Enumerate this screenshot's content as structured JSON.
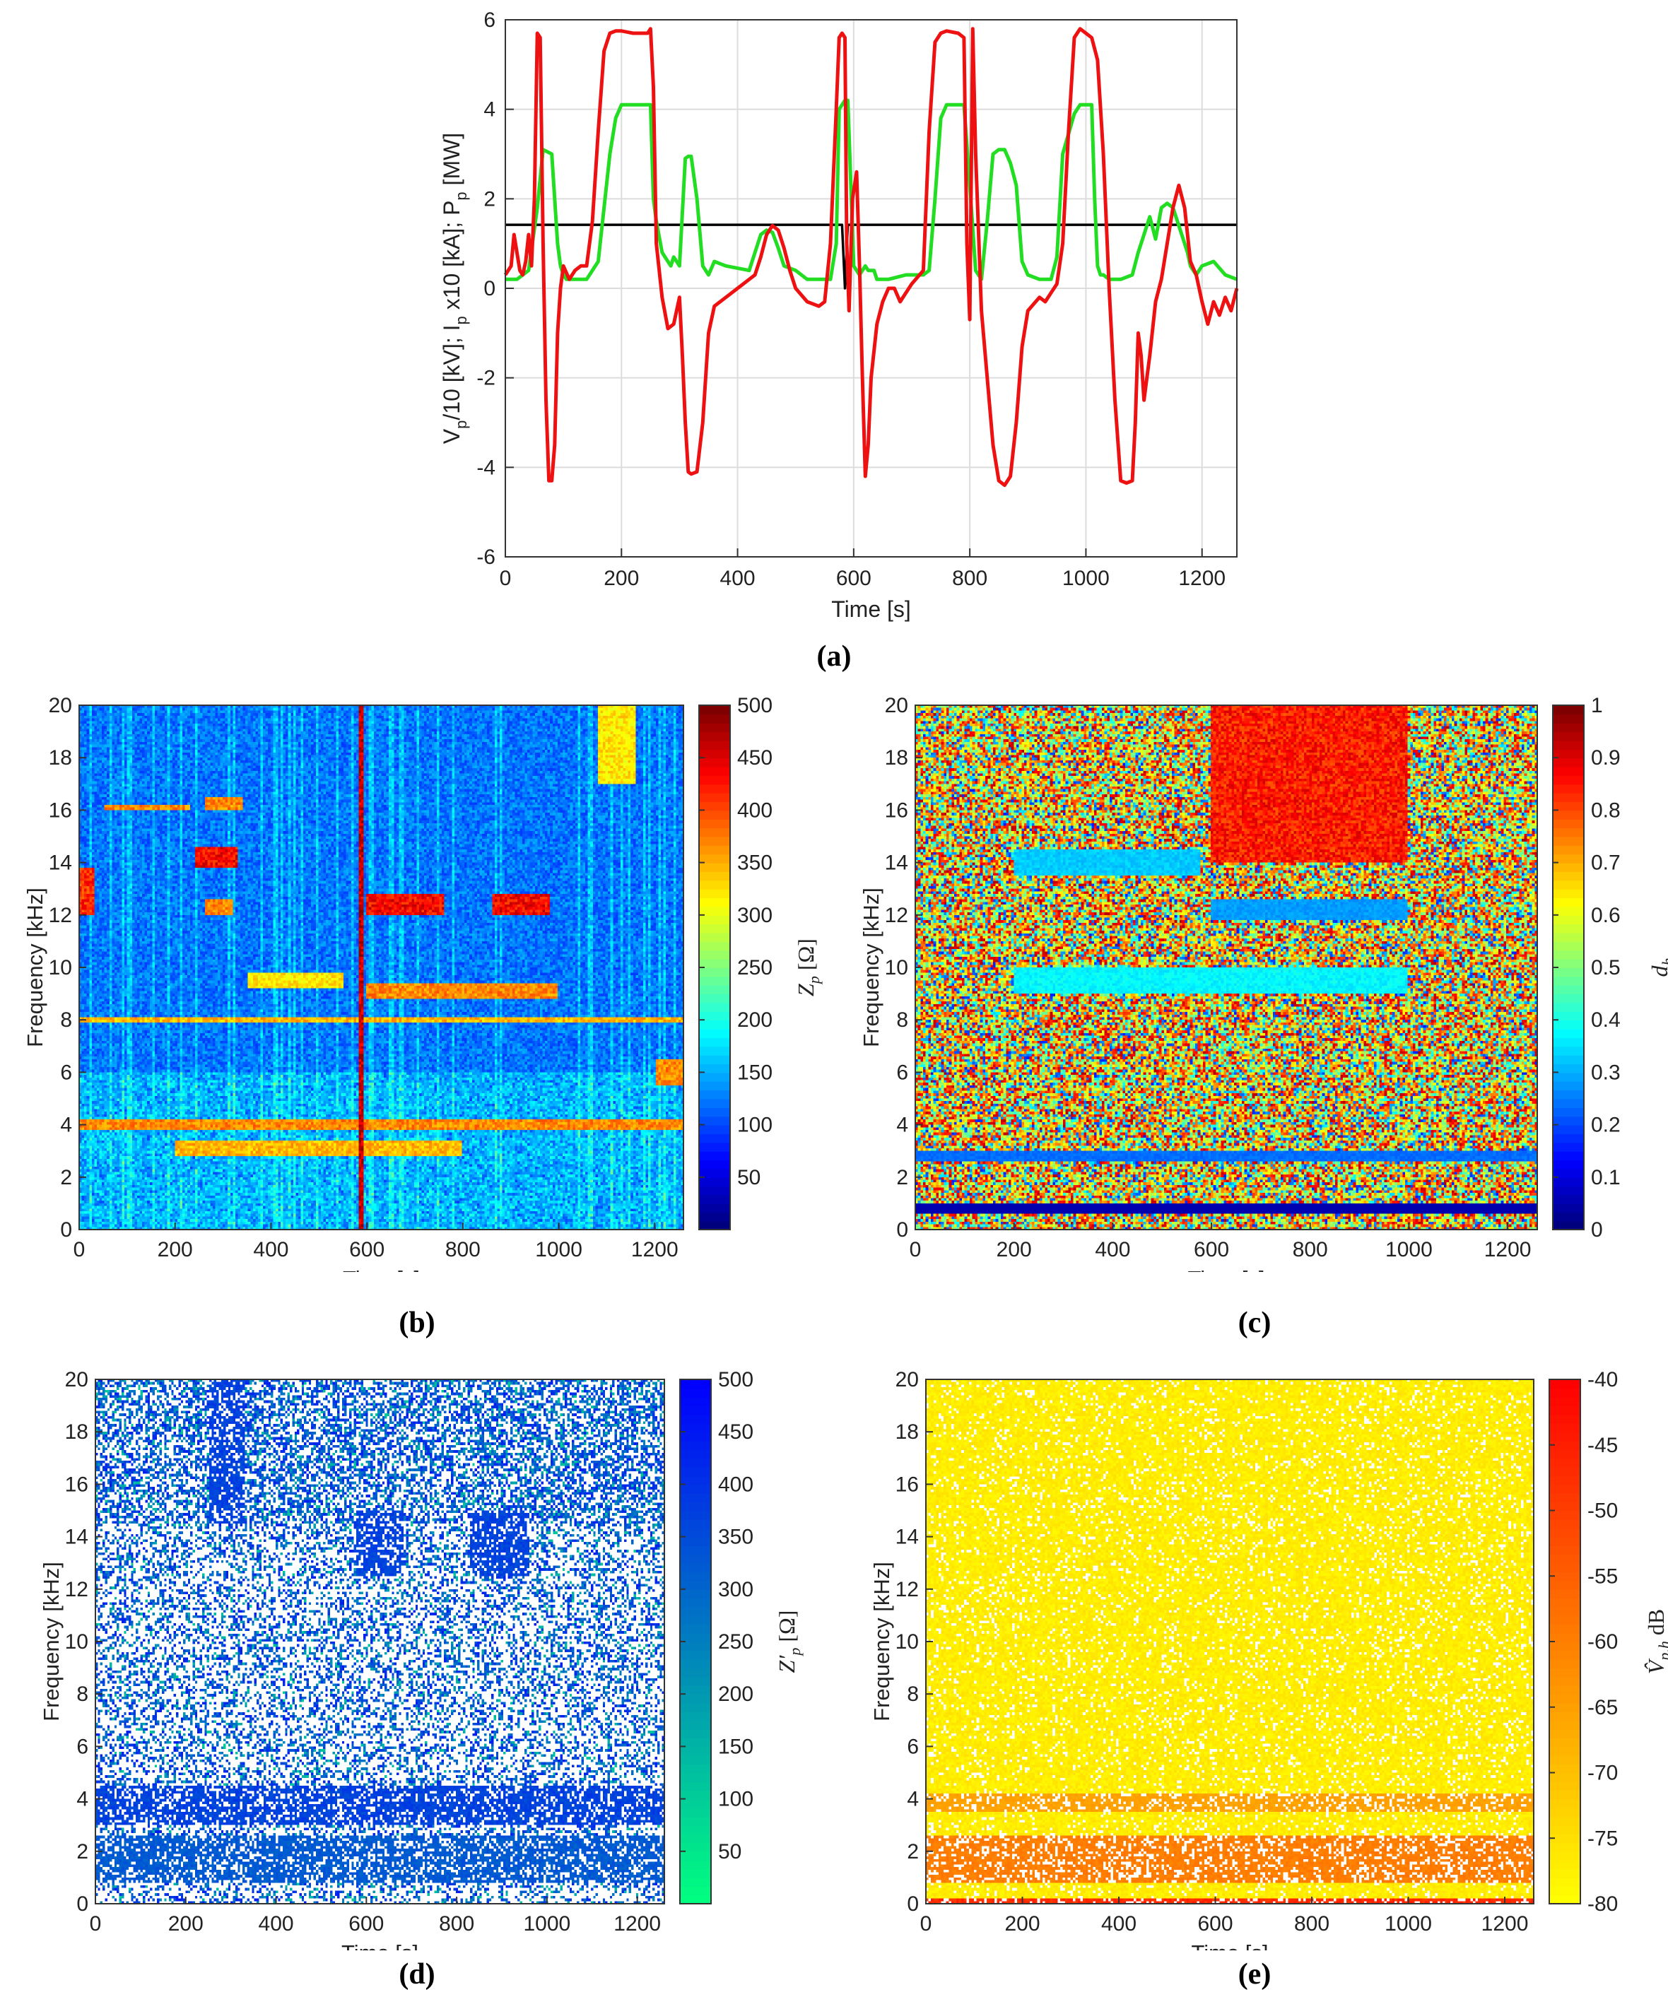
{
  "panel_labels": {
    "a": "(a)",
    "b": "(b)",
    "c": "(c)",
    "d": "(d)",
    "e": "(e)"
  },
  "chart_data": [
    {
      "id": "a",
      "type": "line",
      "xlabel": "Time [s]",
      "ylabel": "Vp/10 [kV]; Ip x10 [kA]; Pp [MW]",
      "ylabel_parts": [
        "V",
        "p",
        "/10 [kV]; I",
        "p",
        " x10 [kA]; P",
        "p",
        " [MW]"
      ],
      "xlim": [
        0,
        1260
      ],
      "ylim": [
        -6,
        6
      ],
      "xticks": [
        0,
        200,
        400,
        600,
        800,
        1000,
        1200
      ],
      "yticks": [
        -6,
        -4,
        -2,
        0,
        2,
        4,
        6
      ],
      "grid": true,
      "series": [
        {
          "color": "#000000",
          "x": [
            0,
            200,
            400,
            580,
            585,
            590,
            600,
            800,
            1000,
            1260
          ],
          "y": [
            1.42,
            1.42,
            1.42,
            1.42,
            0.0,
            1.42,
            1.42,
            1.42,
            1.42,
            1.42
          ]
        },
        {
          "color": "#22dd22",
          "x": [
            0,
            20,
            40,
            55,
            65,
            80,
            90,
            95,
            100,
            105,
            120,
            140,
            160,
            180,
            190,
            200,
            250,
            255,
            260,
            270,
            280,
            285,
            290,
            300,
            310,
            315,
            320,
            330,
            340,
            350,
            360,
            380,
            420,
            440,
            450,
            460,
            470,
            480,
            500,
            520,
            540,
            560,
            570,
            575,
            585,
            590,
            600,
            610,
            620,
            625,
            635,
            640,
            660,
            690,
            700,
            720,
            730,
            740,
            750,
            760,
            780,
            790,
            800,
            810,
            820,
            830,
            840,
            850,
            860,
            870,
            880,
            890,
            900,
            920,
            930,
            940,
            950,
            960,
            980,
            990,
            1010,
            1015,
            1020,
            1025,
            1030,
            1040,
            1060,
            1080,
            1090,
            1100,
            1110,
            1120,
            1130,
            1140,
            1150,
            1160,
            1170,
            1175,
            1180,
            1185,
            1190,
            1200,
            1220,
            1240,
            1260
          ],
          "y": [
            0.2,
            0.2,
            0.4,
            1.8,
            3.1,
            3.0,
            1.0,
            0.5,
            0.3,
            0.2,
            0.2,
            0.2,
            0.6,
            3.0,
            3.8,
            4.1,
            4.1,
            2.0,
            1.5,
            0.8,
            0.6,
            0.5,
            0.7,
            0.5,
            2.9,
            2.95,
            2.95,
            2.0,
            0.5,
            0.3,
            0.6,
            0.5,
            0.4,
            1.2,
            1.3,
            1.25,
            0.9,
            0.5,
            0.4,
            0.2,
            0.2,
            0.2,
            1.0,
            4.0,
            4.2,
            4.2,
            0.5,
            0.3,
            0.5,
            0.4,
            0.4,
            0.2,
            0.2,
            0.3,
            0.3,
            0.3,
            0.4,
            2.0,
            3.8,
            4.1,
            4.1,
            4.1,
            2.3,
            0.4,
            0.2,
            1.5,
            3.0,
            3.1,
            3.1,
            2.8,
            2.3,
            0.6,
            0.3,
            0.2,
            0.2,
            0.2,
            0.7,
            3.0,
            3.9,
            4.1,
            4.1,
            2.0,
            0.5,
            0.3,
            0.3,
            0.2,
            0.2,
            0.3,
            0.8,
            1.2,
            1.6,
            1.1,
            1.8,
            1.9,
            1.8,
            1.4,
            1.0,
            0.8,
            0.5,
            0.4,
            0.3,
            0.5,
            0.6,
            0.3,
            0.2
          ]
        },
        {
          "color": "#ee1111",
          "x": [
            0,
            10,
            15,
            20,
            25,
            30,
            35,
            40,
            45,
            50,
            55,
            60,
            65,
            70,
            75,
            80,
            85,
            90,
            95,
            100,
            110,
            120,
            130,
            140,
            150,
            160,
            170,
            180,
            190,
            200,
            220,
            245,
            250,
            255,
            260,
            270,
            280,
            290,
            295,
            300,
            305,
            310,
            315,
            320,
            330,
            340,
            350,
            360,
            380,
            400,
            420,
            430,
            440,
            450,
            460,
            470,
            480,
            490,
            500,
            520,
            540,
            550,
            560,
            570,
            575,
            580,
            585,
            588,
            592,
            598,
            605,
            610,
            615,
            620,
            625,
            630,
            640,
            650,
            660,
            670,
            680,
            700,
            720,
            730,
            740,
            750,
            760,
            780,
            790,
            795,
            800,
            805,
            810,
            820,
            830,
            840,
            850,
            860,
            870,
            880,
            890,
            900,
            920,
            930,
            940,
            950,
            960,
            970,
            980,
            990,
            1000,
            1010,
            1020,
            1030,
            1040,
            1050,
            1060,
            1070,
            1080,
            1085,
            1090,
            1095,
            1100,
            1110,
            1120,
            1130,
            1140,
            1150,
            1160,
            1170,
            1180,
            1190,
            1200,
            1210,
            1220,
            1230,
            1240,
            1250,
            1260
          ],
          "y": [
            0.3,
            0.5,
            1.2,
            0.8,
            0.4,
            0.3,
            0.6,
            1.2,
            0.5,
            2.0,
            5.7,
            5.6,
            1.0,
            -2.5,
            -4.3,
            -4.3,
            -3.5,
            -1.0,
            0.0,
            0.5,
            0.2,
            0.4,
            0.5,
            0.5,
            1.5,
            3.5,
            5.3,
            5.7,
            5.75,
            5.75,
            5.7,
            5.7,
            5.8,
            4.5,
            1.0,
            -0.2,
            -0.9,
            -0.8,
            -0.5,
            -0.2,
            -1.5,
            -3.0,
            -4.1,
            -4.15,
            -4.1,
            -3.0,
            -1.0,
            -0.4,
            -0.2,
            0.0,
            0.2,
            0.3,
            0.7,
            1.2,
            1.4,
            1.3,
            0.9,
            0.4,
            0.0,
            -0.3,
            -0.4,
            -0.3,
            1.0,
            4.0,
            5.6,
            5.7,
            5.6,
            1.0,
            -0.5,
            2.0,
            2.6,
            0.5,
            -2.0,
            -4.2,
            -3.5,
            -2.0,
            -0.8,
            -0.3,
            0.0,
            0.0,
            -0.3,
            0.1,
            0.4,
            3.5,
            5.5,
            5.7,
            5.75,
            5.7,
            5.6,
            1.0,
            -0.7,
            5.8,
            3.0,
            -0.5,
            -2.0,
            -3.5,
            -4.3,
            -4.4,
            -4.2,
            -3.0,
            -1.3,
            -0.5,
            -0.2,
            -0.3,
            -0.1,
            0.1,
            1.0,
            3.5,
            5.6,
            5.8,
            5.7,
            5.6,
            5.1,
            3.0,
            0.0,
            -2.5,
            -4.3,
            -4.35,
            -4.3,
            -3.0,
            -1.0,
            -1.5,
            -2.5,
            -1.5,
            -0.3,
            0.2,
            1.0,
            1.8,
            2.3,
            1.8,
            0.6,
            0.3,
            -0.3,
            -0.8,
            -0.3,
            -0.6,
            -0.2,
            -0.5,
            0.0
          ]
        }
      ]
    },
    {
      "id": "b",
      "type": "heatmap",
      "xlabel": "Time [s]",
      "ylabel": "Frequency [kHz]",
      "xlim": [
        0,
        1260
      ],
      "ylim": [
        0,
        20
      ],
      "xticks": [
        0,
        200,
        400,
        600,
        800,
        1000,
        1200
      ],
      "yticks": [
        0,
        2,
        4,
        6,
        8,
        10,
        12,
        14,
        16,
        18,
        20
      ],
      "colorbar": {
        "label": "Zp [Ω]",
        "label_main": "Z",
        "label_sub": "p",
        "label_unit": " [Ω]",
        "ticks": [
          50,
          100,
          150,
          200,
          250,
          300,
          350,
          400,
          450,
          500
        ],
        "range": [
          0,
          500
        ],
        "colormap": "jet"
      },
      "features": [
        {
          "t": [
            50,
            230
          ],
          "f": [
            16,
            16.2
          ],
          "level": 0.8
        },
        {
          "t": [
            240,
            330
          ],
          "f": [
            13.8,
            14.6
          ],
          "level": 0.95
        },
        {
          "t": [
            260,
            340
          ],
          "f": [
            16,
            16.5
          ],
          "level": 0.8
        },
        {
          "t": [
            260,
            320
          ],
          "f": [
            12,
            12.6
          ],
          "level": 0.8
        },
        {
          "t": [
            600,
            760
          ],
          "f": [
            12,
            12.8
          ],
          "level": 0.95
        },
        {
          "t": [
            860,
            980
          ],
          "f": [
            12,
            12.8
          ],
          "level": 0.95
        },
        {
          "t": [
            0,
            30
          ],
          "f": [
            12,
            13.8
          ],
          "level": 0.9
        },
        {
          "t": [
            600,
            1000
          ],
          "f": [
            8.8,
            9.4
          ],
          "level": 0.8
        },
        {
          "t": [
            350,
            550
          ],
          "f": [
            9.2,
            9.8
          ],
          "level": 0.7
        },
        {
          "t": [
            0,
            1260
          ],
          "f": [
            7.9,
            8.1
          ],
          "level": 0.75
        },
        {
          "t": [
            0,
            1260
          ],
          "f": [
            3.8,
            4.2
          ],
          "level": 0.8
        },
        {
          "t": [
            200,
            800
          ],
          "f": [
            2.8,
            3.4
          ],
          "level": 0.75
        },
        {
          "t": [
            1080,
            1160
          ],
          "f": [
            17,
            20
          ],
          "level": 0.7
        },
        {
          "t": [
            1200,
            1260
          ],
          "f": [
            5.5,
            6.5
          ],
          "level": 0.8
        },
        {
          "t": [
            584,
            592
          ],
          "f": [
            0,
            20
          ],
          "level": 1.0
        }
      ]
    },
    {
      "id": "c",
      "type": "heatmap",
      "xlabel": "Time [s]",
      "ylabel": "Frequency [kHz]",
      "xlim": [
        0,
        1260
      ],
      "ylim": [
        0,
        20
      ],
      "xticks": [
        0,
        200,
        400,
        600,
        800,
        1000,
        1200
      ],
      "yticks": [
        0,
        2,
        4,
        6,
        8,
        10,
        12,
        14,
        16,
        18,
        20
      ],
      "colorbar": {
        "label": "dh",
        "label_main": "d",
        "label_sub": "h",
        "label_unit": "",
        "ticks": [
          0,
          0.1,
          0.2,
          0.3,
          0.4,
          0.5,
          0.6,
          0.7,
          0.8,
          0.9,
          1
        ],
        "range": [
          0,
          1
        ],
        "colormap": "jet"
      },
      "features": [
        {
          "t": [
            200,
            580
          ],
          "f": [
            13.5,
            14.5
          ],
          "level": 0.35
        },
        {
          "t": [
            600,
            1000
          ],
          "f": [
            11.8,
            12.6
          ],
          "level": 0.3
        },
        {
          "t": [
            200,
            1000
          ],
          "f": [
            9,
            10
          ],
          "level": 0.4
        },
        {
          "t": [
            0,
            1260
          ],
          "f": [
            0.6,
            1.0
          ],
          "level": 0.05
        },
        {
          "t": [
            0,
            1260
          ],
          "f": [
            2.6,
            3.0
          ],
          "level": 0.25
        },
        {
          "t": [
            600,
            1000
          ],
          "f": [
            14,
            20
          ],
          "level": 0.92
        }
      ]
    },
    {
      "id": "d",
      "type": "heatmap",
      "xlabel": "Time [s]",
      "ylabel": "Frequency [kHz]",
      "xlim": [
        0,
        1260
      ],
      "ylim": [
        0,
        20
      ],
      "xticks": [
        0,
        200,
        400,
        600,
        800,
        1000,
        1200
      ],
      "yticks": [
        0,
        2,
        4,
        6,
        8,
        10,
        12,
        14,
        16,
        18,
        20
      ],
      "colorbar": {
        "label": "Z'p [Ω]",
        "label_main": "Z′",
        "label_sub": "p",
        "label_unit": " [Ω]",
        "ticks": [
          50,
          100,
          150,
          200,
          250,
          300,
          350,
          400,
          450,
          500
        ],
        "range": [
          0,
          500
        ],
        "colormap": "winter"
      },
      "features": [
        {
          "t": [
            250,
            330
          ],
          "f": [
            14.5,
            20
          ],
          "level": 0.8
        },
        {
          "t": [
            580,
            680
          ],
          "f": [
            12.5,
            15
          ],
          "level": 0.8
        },
        {
          "t": [
            830,
            960
          ],
          "f": [
            12.5,
            15
          ],
          "level": 0.8
        },
        {
          "t": [
            0,
            1260
          ],
          "f": [
            3.0,
            4.5
          ],
          "level": 0.8
        },
        {
          "t": [
            0,
            1260
          ],
          "f": [
            0.8,
            2.6
          ],
          "level": 0.7
        }
      ]
    },
    {
      "id": "e",
      "type": "heatmap",
      "xlabel": "Time [s]",
      "ylabel": "Frequency [kHz]",
      "xlim": [
        0,
        1260
      ],
      "ylim": [
        0,
        20
      ],
      "xticks": [
        0,
        200,
        400,
        600,
        800,
        1000,
        1200
      ],
      "yticks": [
        0,
        2,
        4,
        6,
        8,
        10,
        12,
        14,
        16,
        18,
        20
      ],
      "colorbar": {
        "label": "V̂p,h dB",
        "label_main": "V̂",
        "label_sub": "p,h",
        "label_unit": " dB",
        "ticks": [
          -40,
          -45,
          -50,
          -55,
          -60,
          -65,
          -70,
          -75,
          -80
        ],
        "range": [
          -80,
          -40
        ],
        "colormap": "autumn"
      },
      "features": [
        {
          "t": [
            0,
            1260
          ],
          "f": [
            3.5,
            4.2
          ],
          "level": 0.4
        },
        {
          "t": [
            0,
            1260
          ],
          "f": [
            0.8,
            2.6
          ],
          "level": 0.55
        },
        {
          "t": [
            0,
            1260
          ],
          "f": [
            0.0,
            0.2
          ],
          "level": 0.9
        }
      ]
    }
  ]
}
